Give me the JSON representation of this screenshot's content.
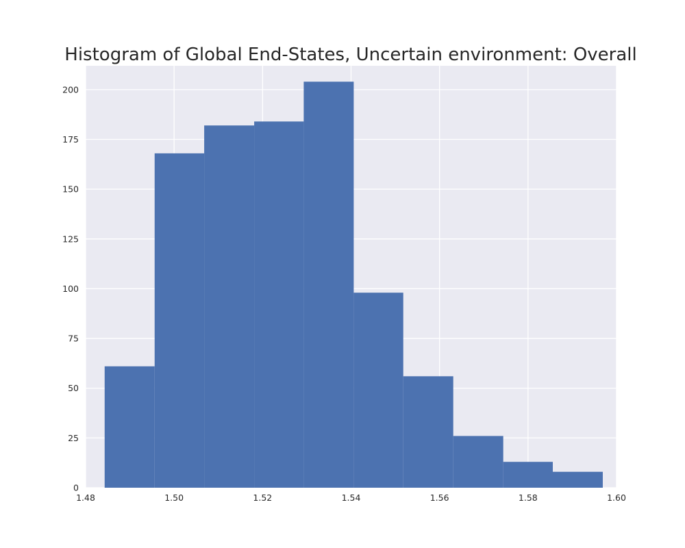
{
  "chart_data": {
    "type": "bar",
    "title": "Histogram of Global End-States, Uncertain environment: Overall",
    "xlabel": "",
    "ylabel": "",
    "xlim": [
      1.48,
      1.6
    ],
    "ylim": [
      0,
      212
    ],
    "x_ticks": [
      1.48,
      1.5,
      1.52,
      1.54,
      1.56,
      1.58,
      1.6
    ],
    "x_tick_labels": [
      "1.48",
      "1.50",
      "1.52",
      "1.54",
      "1.56",
      "1.58",
      "1.60"
    ],
    "y_ticks": [
      0,
      25,
      50,
      75,
      100,
      125,
      150,
      175,
      200
    ],
    "y_tick_labels": [
      "0",
      "25",
      "50",
      "75",
      "100",
      "125",
      "150",
      "175",
      "200"
    ],
    "bins": [
      {
        "start": 1.4843,
        "end": 1.4956,
        "count": 61
      },
      {
        "start": 1.4956,
        "end": 1.5068,
        "count": 168
      },
      {
        "start": 1.5068,
        "end": 1.5181,
        "count": 182
      },
      {
        "start": 1.5181,
        "end": 1.5293,
        "count": 184
      },
      {
        "start": 1.5293,
        "end": 1.5406,
        "count": 204
      },
      {
        "start": 1.5406,
        "end": 1.5518,
        "count": 98
      },
      {
        "start": 1.5518,
        "end": 1.5631,
        "count": 56
      },
      {
        "start": 1.5631,
        "end": 1.5744,
        "count": 26
      },
      {
        "start": 1.5744,
        "end": 1.5856,
        "count": 13
      },
      {
        "start": 1.5856,
        "end": 1.5969,
        "count": 8
      }
    ],
    "grid": true,
    "colors": {
      "bar": "#4c72b0",
      "background": "#eaeaf2",
      "grid": "#ffffff"
    }
  }
}
